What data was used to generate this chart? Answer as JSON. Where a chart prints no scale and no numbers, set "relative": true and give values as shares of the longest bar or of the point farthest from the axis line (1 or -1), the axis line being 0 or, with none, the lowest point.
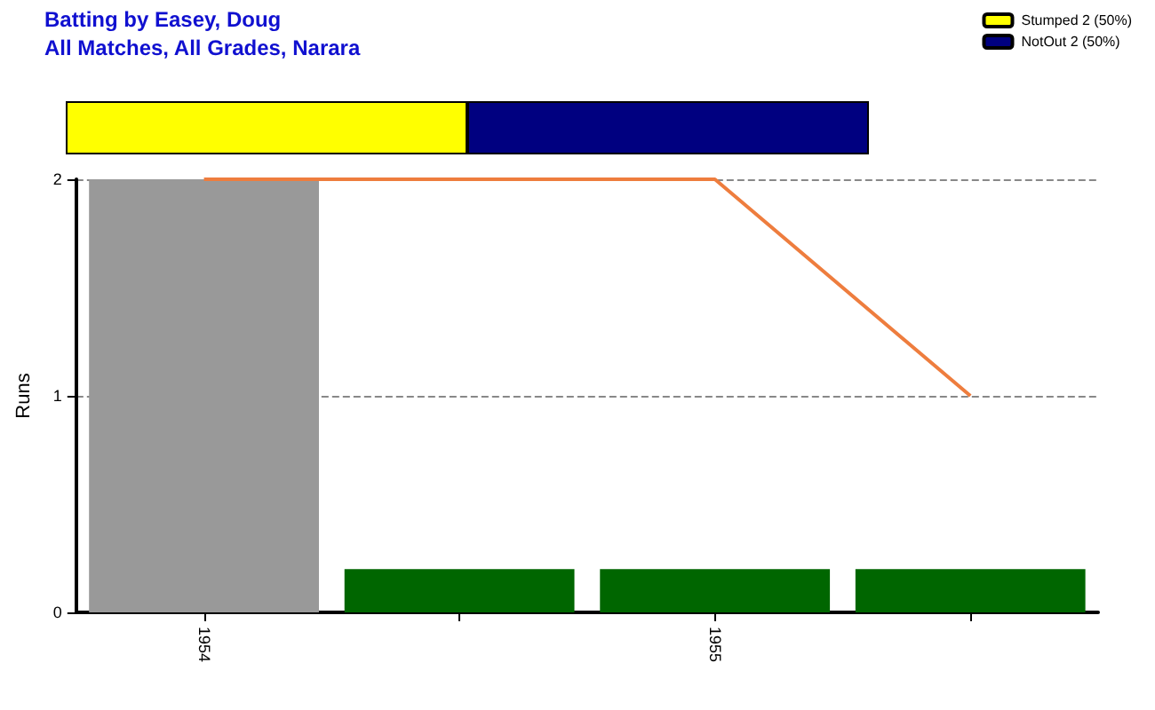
{
  "chart_data": [
    {
      "type": "bar",
      "title": "Batting by Easey, Doug",
      "subtitle": "All Matches, All Grades, Narara",
      "orientation": "horizontal",
      "stacked": true,
      "relative": true,
      "categories": [
        null
      ],
      "legend": "top right",
      "series": [
        {
          "name": "Stumped 2 (50%)",
          "color": "#ffff00",
          "values": [
            0.5
          ]
        },
        {
          "name": "NotOut 2 (50%)",
          "color": "#000080",
          "values": [
            0.5
          ]
        }
      ]
    },
    {
      "type": "bar",
      "ylabel": "Runs",
      "categories": [
        "1954",
        null,
        "1955",
        null
      ],
      "ylim": [
        0,
        2
      ],
      "yticks": [
        0,
        1,
        2
      ],
      "grid": "y",
      "series": [
        {
          "type": "bar",
          "colors": [
            "#999999",
            "#006600",
            "#006600",
            "#006600"
          ],
          "values": [
            2,
            0.2,
            0.2,
            0.2
          ]
        },
        {
          "type": "line",
          "color": "#ee7d3e",
          "marker": "none",
          "line_style": "solid",
          "values": [
            2,
            2,
            2,
            1
          ]
        }
      ]
    }
  ]
}
